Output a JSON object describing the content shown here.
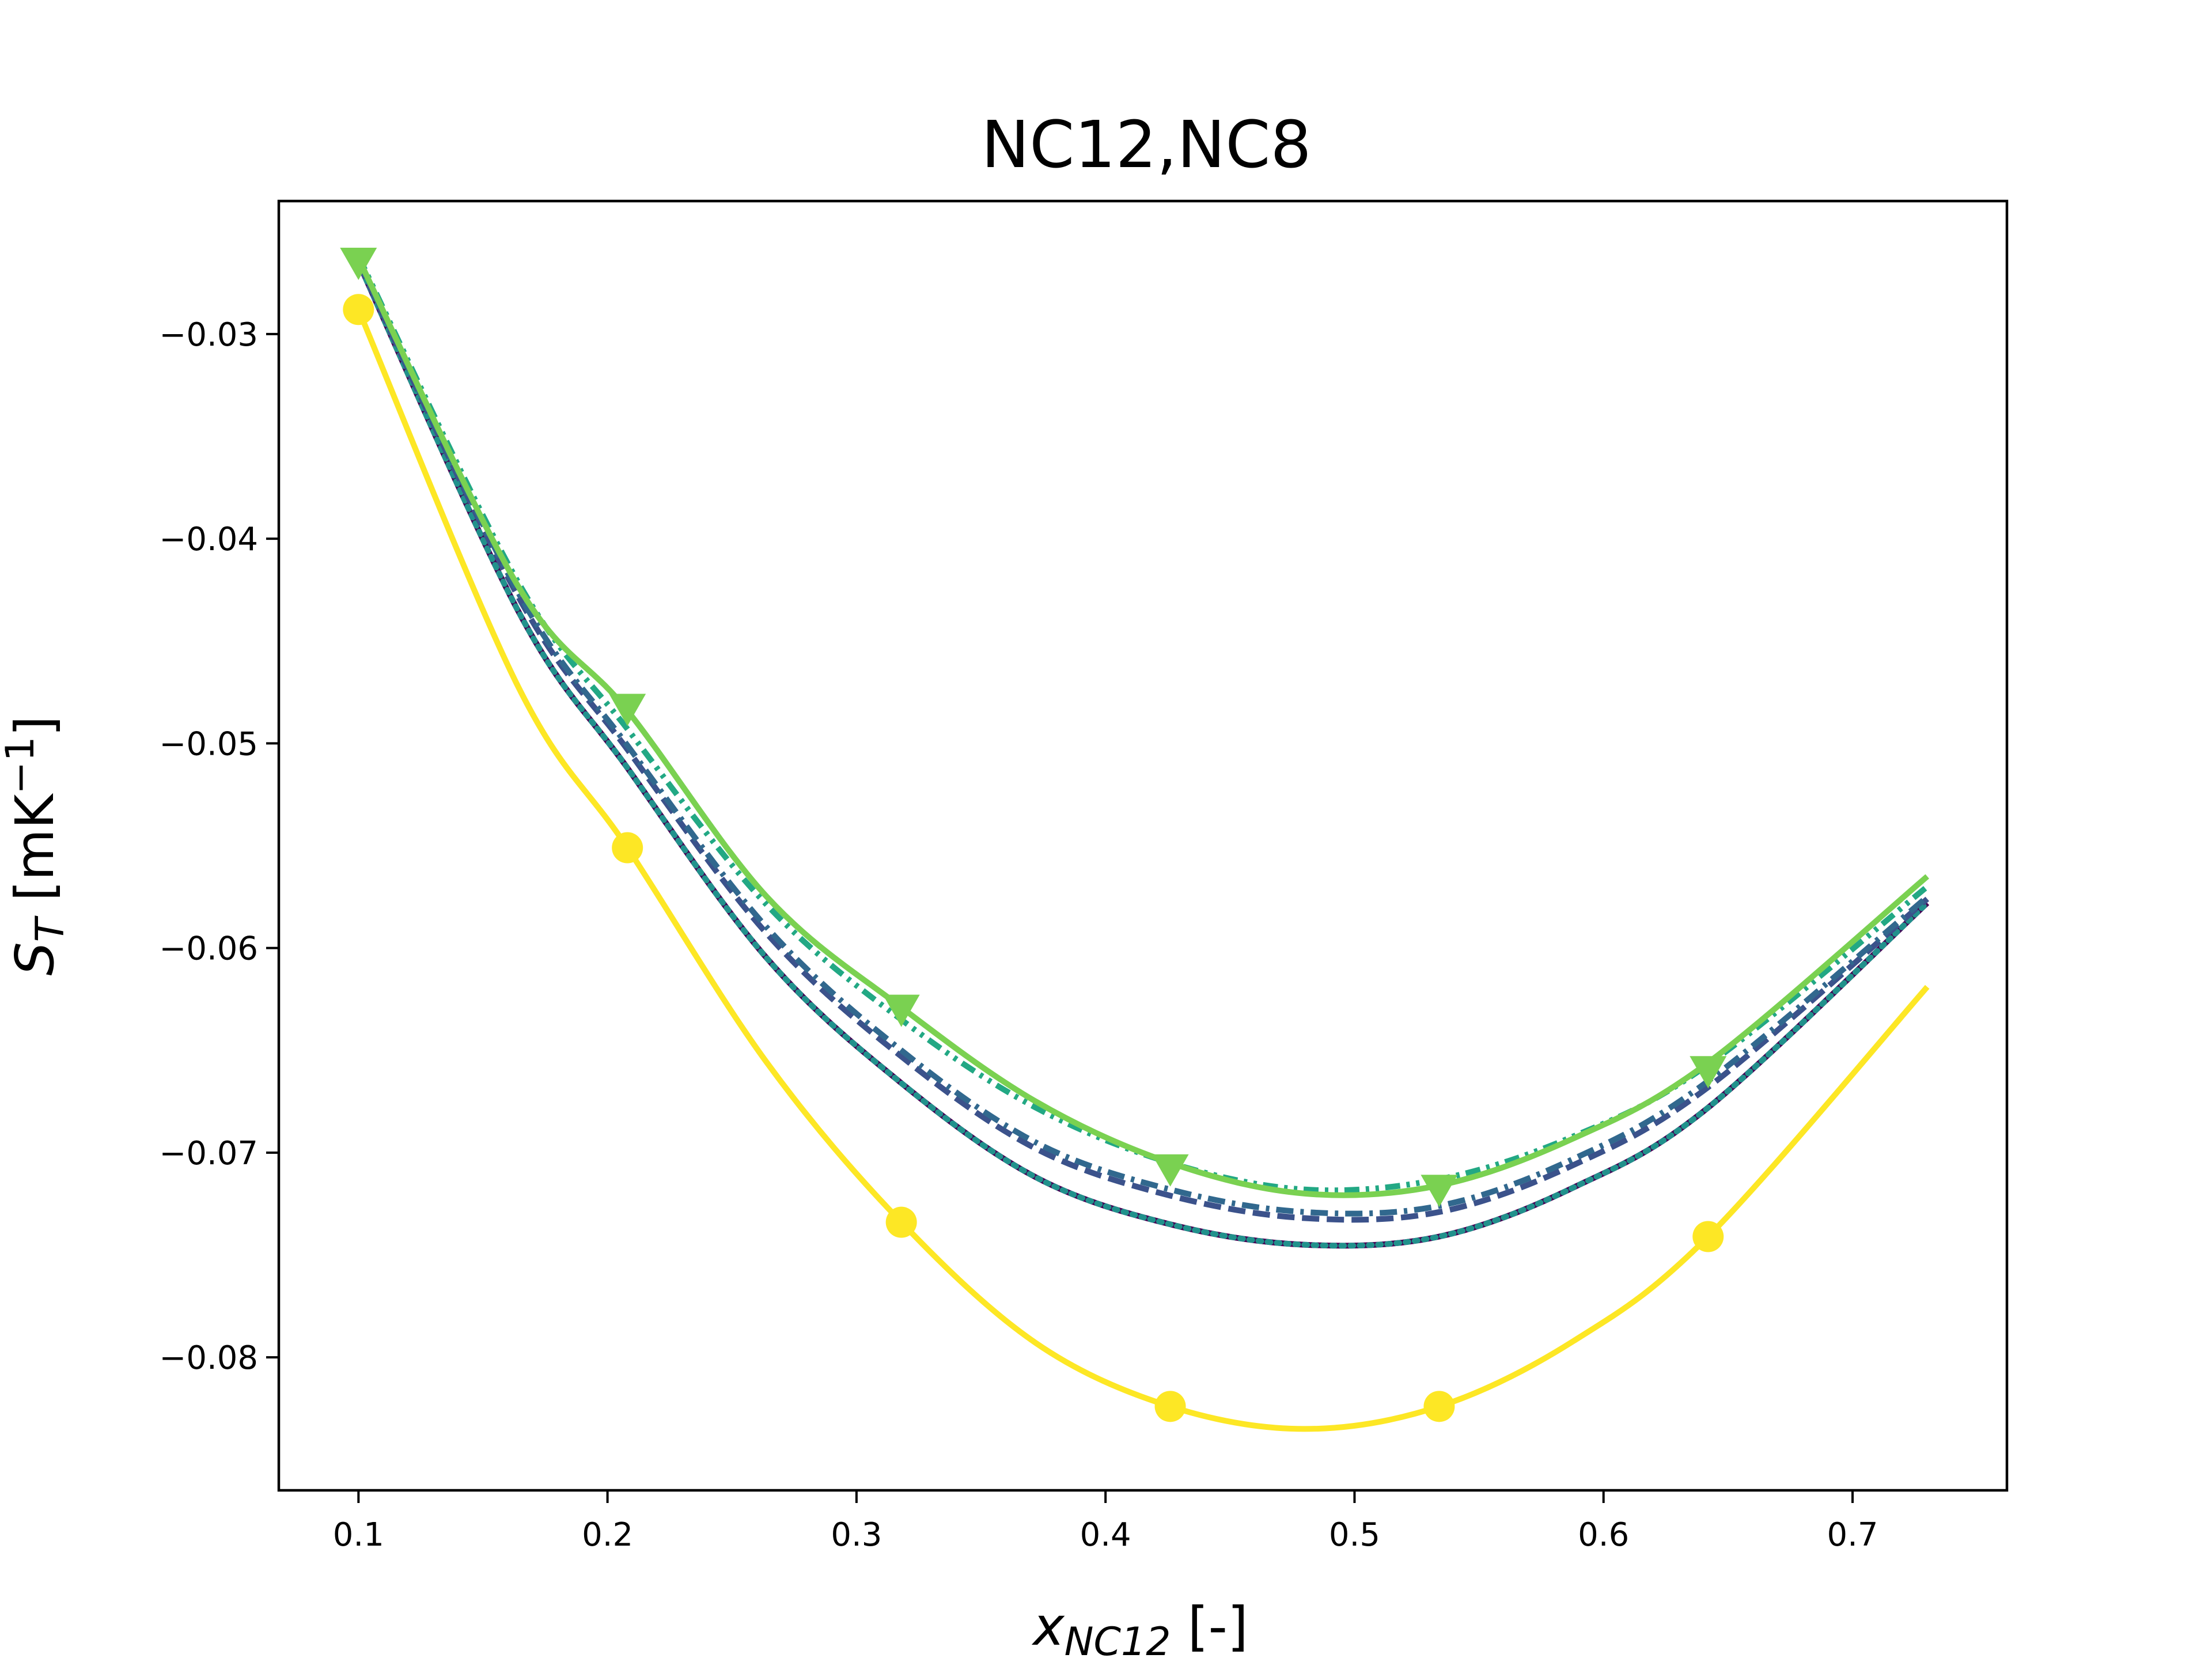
{
  "chart_data": {
    "type": "line",
    "title": "NC12,NC8",
    "xlabel": {
      "symbol": "x",
      "subscript": "NC12",
      "suffix": " [-]"
    },
    "ylabel": {
      "symbol": "S",
      "subscript": "T",
      "unit_prefix": " [mK",
      "unit_superscript": "−1",
      "unit_suffix": "]"
    },
    "xlim": [
      0.068,
      0.762
    ],
    "ylim": [
      -0.0865,
      -0.0235
    ],
    "x_ticks": [
      0.1,
      0.2,
      0.3,
      0.4,
      0.5,
      0.6,
      0.7
    ],
    "x_tick_labels": [
      "0.1",
      "0.2",
      "0.3",
      "0.4",
      "0.5",
      "0.6",
      "0.7"
    ],
    "y_ticks": [
      -0.03,
      -0.04,
      -0.05,
      -0.06,
      -0.07,
      -0.08
    ],
    "y_tick_labels": [
      "−0.03",
      "−0.04",
      "−0.05",
      "−0.06",
      "−0.07",
      "−0.08"
    ],
    "grid": false,
    "x": [
      0.1,
      0.164,
      0.208,
      0.264,
      0.318,
      0.372,
      0.426,
      0.48,
      0.534,
      0.588,
      0.642,
      0.73
    ],
    "series": [
      {
        "color": "#440154",
        "style": "solid",
        "marker": "none",
        "values": [
          -0.0265,
          -0.0435,
          -0.0512,
          -0.0605,
          -0.0666,
          -0.0712,
          -0.0735,
          -0.0745,
          -0.0741,
          -0.0717,
          -0.0678,
          -0.0578
        ]
      },
      {
        "color": "#21918c",
        "style": "dotted",
        "marker": "none",
        "values": [
          -0.0265,
          -0.0435,
          -0.0512,
          -0.0605,
          -0.0666,
          -0.0712,
          -0.0735,
          -0.0745,
          -0.0741,
          -0.0717,
          -0.0678,
          -0.0578
        ]
      },
      {
        "color": "#3b528b",
        "style": "dashed",
        "marker": "none",
        "values": [
          -0.0265,
          -0.0428,
          -0.0503,
          -0.0593,
          -0.0653,
          -0.0698,
          -0.0721,
          -0.0732,
          -0.0729,
          -0.0706,
          -0.0668,
          -0.0576
        ]
      },
      {
        "color": "#31688e",
        "style": "dashdot",
        "marker": "none",
        "values": [
          -0.0264,
          -0.0426,
          -0.0501,
          -0.059,
          -0.065,
          -0.0695,
          -0.0718,
          -0.0729,
          -0.0726,
          -0.0703,
          -0.0665,
          -0.0575
        ]
      },
      {
        "color": "#22a884",
        "style": "dashdotdot",
        "marker": "none",
        "values": [
          -0.0262,
          -0.0421,
          -0.0493,
          -0.0579,
          -0.0635,
          -0.0678,
          -0.0705,
          -0.0718,
          -0.0713,
          -0.0692,
          -0.0657,
          -0.057
        ]
      },
      {
        "color": "#7ad151",
        "style": "solid",
        "marker": "triangle-down",
        "marker_x": [
          0.1,
          0.208,
          0.318,
          0.426,
          0.534,
          0.642
        ],
        "marker_values": [
          -0.0265,
          -0.0483,
          -0.063,
          -0.0708,
          -0.0718,
          -0.066
        ],
        "values": [
          -0.0263,
          -0.0423,
          -0.0484,
          -0.0575,
          -0.0629,
          -0.0675,
          -0.0705,
          -0.072,
          -0.0716,
          -0.0693,
          -0.0656,
          -0.0565
        ]
      },
      {
        "color": "#fde725",
        "style": "solid",
        "marker": "circle",
        "marker_x": [
          0.1,
          0.208,
          0.318,
          0.426,
          0.534,
          0.642
        ],
        "marker_values": [
          -0.0288,
          -0.0551,
          -0.0734,
          -0.0824,
          -0.0824,
          -0.0741
        ],
        "values": [
          -0.0288,
          -0.0472,
          -0.0551,
          -0.0656,
          -0.0734,
          -0.0793,
          -0.0824,
          -0.0835,
          -0.0824,
          -0.0792,
          -0.0741,
          -0.0619
        ]
      }
    ]
  }
}
